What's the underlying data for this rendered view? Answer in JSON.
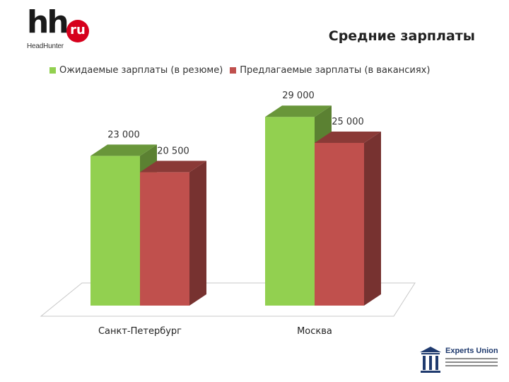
{
  "logo": {
    "main": "hh",
    "badge": "ru",
    "subtitle": "HeadHunter"
  },
  "title": "Средние зарплаты",
  "partner_logo": {
    "name": "Experts Union"
  },
  "colors": {
    "expected": "#92d050",
    "offered": "#c0504d",
    "brand_red": "#d6001c"
  },
  "chart_data": {
    "type": "bar",
    "title": "Средние зарплаты",
    "categories": [
      "Санкт-Петербург",
      "Москва"
    ],
    "series": [
      {
        "name": "Ожидаемые зарплаты (в резюме)",
        "values": [
          23000,
          29000
        ],
        "labels": [
          "23 000",
          "29 000"
        ]
      },
      {
        "name": "Предлагаемые зарплаты (в вакансиях)",
        "values": [
          20500,
          25000
        ],
        "labels": [
          "20 500",
          "25 000"
        ]
      }
    ],
    "xlabel": "",
    "ylabel": "",
    "grid": false,
    "legend": "top",
    "style": "3d"
  }
}
